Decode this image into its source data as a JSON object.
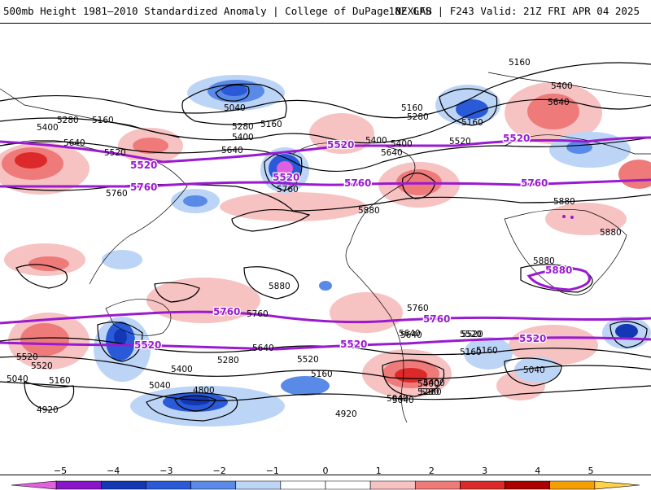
{
  "header": {
    "title": "500mb Height 1981–2010 Standardized Anomaly | College of DuPage NEXLAB",
    "run_info": "18Z GFS | F243 Valid: 21Z FRI APR 04 2025"
  },
  "colorbar": {
    "ticks": [
      "−5",
      "−4",
      "−3",
      "−2",
      "−1",
      "0",
      "1",
      "2",
      "3",
      "4",
      "5"
    ],
    "colors": [
      "#e060e0",
      "#8a14c8",
      "#1438b4",
      "#2a5ad8",
      "#5a8ae8",
      "#bcd4f6",
      "#ffffff",
      "#ffffff",
      "#f7c2c2",
      "#ee7a7a",
      "#dc2a2a",
      "#aa0000",
      "#f5a000",
      "#ffd24a"
    ]
  },
  "height_labels": [
    "5160",
    "5400",
    "5640",
    "5040",
    "5160",
    "5280",
    "5400",
    "5160",
    "5280",
    "5160",
    "5400",
    "5280",
    "5160",
    "5400",
    "5640",
    "5520",
    "5400",
    "5520",
    "5640",
    "5640",
    "5760",
    "5760",
    "5880",
    "5880",
    "5880",
    "5880",
    "5880",
    "5760",
    "5640",
    "5520",
    "5400",
    "5280",
    "5160",
    "5040",
    "4920",
    "4800",
    "5040",
    "5160",
    "4920",
    "5280",
    "5400",
    "5040",
    "5520",
    "5160",
    "5640",
    "5040",
    "5520",
    "5760",
    "5520",
    "5160",
    "5280",
    "5400",
    "5520",
    "5040",
    "5640"
  ],
  "highlight_labels": [
    "5520",
    "5520",
    "5520",
    "5520",
    "5760",
    "5760",
    "5760",
    "5880",
    "5760",
    "5760",
    "5520",
    "5520",
    "5520",
    "5520"
  ],
  "colors": {
    "highlight_contour": "#9a1ad0",
    "contour": "#000000",
    "coast": "#000000"
  }
}
